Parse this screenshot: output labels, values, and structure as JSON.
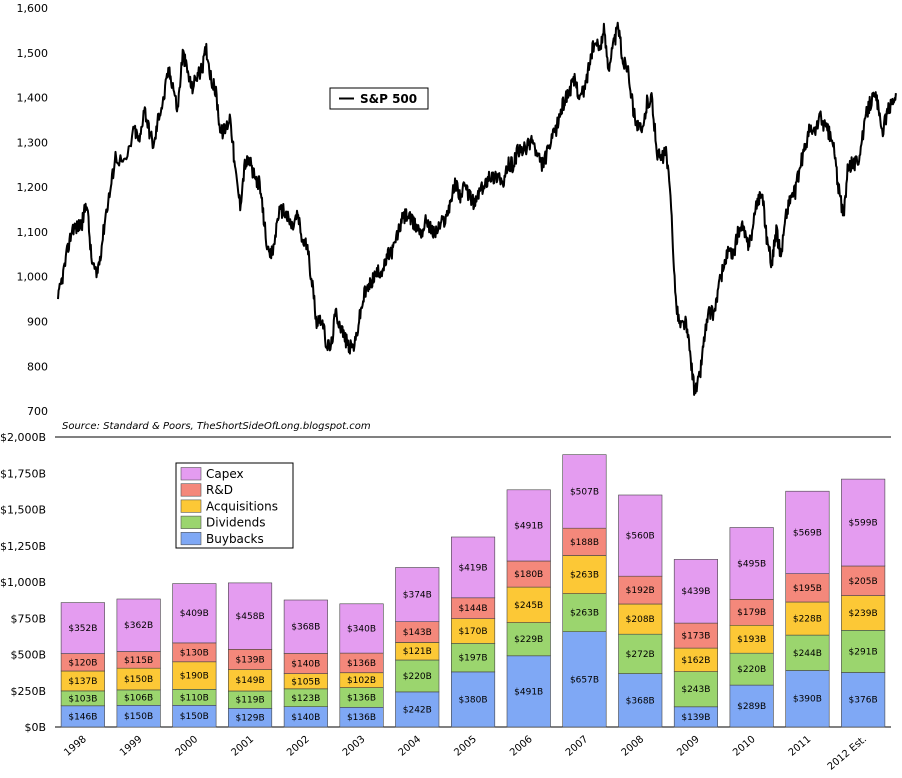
{
  "source_note": "Source: Standard & Poors, TheShortSideOfLong.blogspot.com",
  "chart_data": [
    {
      "type": "line",
      "name": "sp500",
      "series": [
        {
          "name": "S&P 500",
          "color": "#000000"
        }
      ],
      "ylim": [
        680,
        1600
      ],
      "yticks": [
        700,
        800,
        900,
        1000,
        1100,
        1200,
        1300,
        1400,
        1500,
        1600
      ],
      "ytick_labels": [
        "700",
        "800",
        "900",
        "1,000",
        "1,100",
        "1,200",
        "1,300",
        "1,400",
        "1,500",
        "1,600"
      ],
      "xlim": [
        1998.0,
        2012.6
      ],
      "legend_label": "S&P 500",
      "legend": "top-center",
      "points": [
        [
          1998.0,
          950
        ],
        [
          1998.08,
          1000
        ],
        [
          1998.17,
          1060
        ],
        [
          1998.25,
          1110
        ],
        [
          1998.33,
          1110
        ],
        [
          1998.42,
          1120
        ],
        [
          1998.5,
          1170
        ],
        [
          1998.58,
          1040
        ],
        [
          1998.67,
          1000
        ],
        [
          1998.75,
          1060
        ],
        [
          1998.83,
          1140
        ],
        [
          1998.92,
          1200
        ],
        [
          1999.0,
          1270
        ],
        [
          1999.17,
          1250
        ],
        [
          1999.33,
          1330
        ],
        [
          1999.42,
          1300
        ],
        [
          1999.5,
          1380
        ],
        [
          1999.58,
          1330
        ],
        [
          1999.67,
          1290
        ],
        [
          1999.75,
          1360
        ],
        [
          1999.83,
          1390
        ],
        [
          1999.92,
          1460
        ],
        [
          2000.0,
          1430
        ],
        [
          2000.08,
          1370
        ],
        [
          2000.17,
          1500
        ],
        [
          2000.25,
          1460
        ],
        [
          2000.33,
          1420
        ],
        [
          2000.42,
          1450
        ],
        [
          2000.5,
          1460
        ],
        [
          2000.58,
          1510
        ],
        [
          2000.67,
          1440
        ],
        [
          2000.75,
          1410
        ],
        [
          2000.83,
          1320
        ],
        [
          2000.92,
          1330
        ],
        [
          2001.0,
          1360
        ],
        [
          2001.08,
          1240
        ],
        [
          2001.17,
          1160
        ],
        [
          2001.25,
          1250
        ],
        [
          2001.33,
          1260
        ],
        [
          2001.42,
          1220
        ],
        [
          2001.5,
          1210
        ],
        [
          2001.58,
          1130
        ],
        [
          2001.67,
          1040
        ],
        [
          2001.75,
          1060
        ],
        [
          2001.83,
          1140
        ],
        [
          2001.92,
          1150
        ],
        [
          2002.0,
          1130
        ],
        [
          2002.08,
          1110
        ],
        [
          2002.17,
          1140
        ],
        [
          2002.25,
          1080
        ],
        [
          2002.33,
          1070
        ],
        [
          2002.42,
          990
        ],
        [
          2002.5,
          900
        ],
        [
          2002.58,
          910
        ],
        [
          2002.67,
          850
        ],
        [
          2002.75,
          840
        ],
        [
          2002.83,
          920
        ],
        [
          2002.92,
          890
        ],
        [
          2003.0,
          860
        ],
        [
          2003.08,
          840
        ],
        [
          2003.17,
          850
        ],
        [
          2003.25,
          910
        ],
        [
          2003.33,
          960
        ],
        [
          2003.42,
          980
        ],
        [
          2003.5,
          1000
        ],
        [
          2003.58,
          1010
        ],
        [
          2003.67,
          1020
        ],
        [
          2003.75,
          1050
        ],
        [
          2003.83,
          1060
        ],
        [
          2003.92,
          1100
        ],
        [
          2004.0,
          1130
        ],
        [
          2004.08,
          1140
        ],
        [
          2004.17,
          1120
        ],
        [
          2004.25,
          1110
        ],
        [
          2004.33,
          1100
        ],
        [
          2004.42,
          1130
        ],
        [
          2004.5,
          1100
        ],
        [
          2004.58,
          1100
        ],
        [
          2004.67,
          1120
        ],
        [
          2004.75,
          1130
        ],
        [
          2004.83,
          1170
        ],
        [
          2004.92,
          1210
        ],
        [
          2005.0,
          1180
        ],
        [
          2005.08,
          1200
        ],
        [
          2005.17,
          1180
        ],
        [
          2005.25,
          1160
        ],
        [
          2005.33,
          1190
        ],
        [
          2005.42,
          1200
        ],
        [
          2005.5,
          1230
        ],
        [
          2005.58,
          1220
        ],
        [
          2005.67,
          1230
        ],
        [
          2005.75,
          1200
        ],
        [
          2005.83,
          1250
        ],
        [
          2005.92,
          1250
        ],
        [
          2006.0,
          1280
        ],
        [
          2006.08,
          1280
        ],
        [
          2006.17,
          1290
        ],
        [
          2006.25,
          1310
        ],
        [
          2006.33,
          1270
        ],
        [
          2006.42,
          1250
        ],
        [
          2006.5,
          1270
        ],
        [
          2006.58,
          1300
        ],
        [
          2006.67,
          1330
        ],
        [
          2006.75,
          1370
        ],
        [
          2006.83,
          1400
        ],
        [
          2006.92,
          1420
        ],
        [
          2007.0,
          1440
        ],
        [
          2007.08,
          1400
        ],
        [
          2007.17,
          1420
        ],
        [
          2007.25,
          1480
        ],
        [
          2007.33,
          1520
        ],
        [
          2007.42,
          1510
        ],
        [
          2007.5,
          1550
        ],
        [
          2007.58,
          1470
        ],
        [
          2007.67,
          1520
        ],
        [
          2007.75,
          1560
        ],
        [
          2007.83,
          1480
        ],
        [
          2007.92,
          1470
        ],
        [
          2008.0,
          1380
        ],
        [
          2008.08,
          1340
        ],
        [
          2008.17,
          1320
        ],
        [
          2008.25,
          1390
        ],
        [
          2008.33,
          1400
        ],
        [
          2008.42,
          1280
        ],
        [
          2008.5,
          1260
        ],
        [
          2008.58,
          1280
        ],
        [
          2008.67,
          1160
        ],
        [
          2008.75,
          940
        ],
        [
          2008.83,
          890
        ],
        [
          2008.92,
          900
        ],
        [
          2009.0,
          830
        ],
        [
          2009.08,
          740
        ],
        [
          2009.17,
          780
        ],
        [
          2009.25,
          870
        ],
        [
          2009.33,
          920
        ],
        [
          2009.42,
          920
        ],
        [
          2009.5,
          980
        ],
        [
          2009.58,
          1020
        ],
        [
          2009.67,
          1060
        ],
        [
          2009.75,
          1040
        ],
        [
          2009.83,
          1100
        ],
        [
          2009.92,
          1110
        ],
        [
          2010.0,
          1070
        ],
        [
          2010.08,
          1100
        ],
        [
          2010.17,
          1170
        ],
        [
          2010.25,
          1190
        ],
        [
          2010.33,
          1090
        ],
        [
          2010.42,
          1030
        ],
        [
          2010.5,
          1100
        ],
        [
          2010.58,
          1050
        ],
        [
          2010.67,
          1140
        ],
        [
          2010.75,
          1180
        ],
        [
          2010.83,
          1190
        ],
        [
          2010.92,
          1250
        ],
        [
          2011.0,
          1290
        ],
        [
          2011.08,
          1330
        ],
        [
          2011.17,
          1320
        ],
        [
          2011.25,
          1360
        ],
        [
          2011.33,
          1340
        ],
        [
          2011.42,
          1320
        ],
        [
          2011.5,
          1290
        ],
        [
          2011.58,
          1200
        ],
        [
          2011.67,
          1130
        ],
        [
          2011.75,
          1250
        ],
        [
          2011.83,
          1250
        ],
        [
          2011.92,
          1260
        ],
        [
          2012.0,
          1310
        ],
        [
          2012.08,
          1370
        ],
        [
          2012.17,
          1400
        ],
        [
          2012.25,
          1400
        ],
        [
          2012.33,
          1320
        ],
        [
          2012.42,
          1360
        ],
        [
          2012.5,
          1390
        ],
        [
          2012.58,
          1410
        ]
      ]
    },
    {
      "type": "bar",
      "name": "corporate-cash-usage",
      "stacked": true,
      "categories": [
        "1998",
        "1999",
        "2000",
        "2001",
        "2002",
        "2003",
        "2004",
        "2005",
        "2006",
        "2007",
        "2008",
        "2009",
        "2010",
        "2011",
        "2012 Est."
      ],
      "series": [
        {
          "name": "Buybacks",
          "color": "#7fa8f5",
          "values": [
            146,
            150,
            150,
            129,
            140,
            136,
            242,
            380,
            491,
            657,
            368,
            139,
            289,
            390,
            376
          ]
        },
        {
          "name": "Dividends",
          "color": "#9bd56e",
          "values": [
            103,
            106,
            110,
            119,
            123,
            136,
            220,
            197,
            229,
            263,
            272,
            243,
            220,
            244,
            291
          ]
        },
        {
          "name": "Acquisitions",
          "color": "#fcc836",
          "values": [
            137,
            150,
            190,
            149,
            105,
            102,
            121,
            170,
            245,
            263,
            208,
            162,
            193,
            228,
            239
          ]
        },
        {
          "name": "R&D",
          "color": "#f4887b",
          "values": [
            120,
            115,
            130,
            139,
            140,
            136,
            143,
            144,
            180,
            188,
            192,
            173,
            179,
            195,
            205
          ]
        },
        {
          "name": "Capex",
          "color": "#e49cf0",
          "values": [
            352,
            362,
            409,
            458,
            368,
            340,
            374,
            419,
            491,
            507,
            560,
            439,
            495,
            569,
            599
          ]
        }
      ],
      "ylim": [
        0,
        2000
      ],
      "yticks": [
        0,
        250,
        500,
        750,
        1000,
        1250,
        1500,
        1750,
        2000
      ],
      "ytick_labels": [
        "$0B",
        "$250B",
        "$500B",
        "$750B",
        "$1,000B",
        "$1,250B",
        "$1,500B",
        "$1,750B",
        "$2,000B"
      ],
      "value_prefix": "$",
      "value_suffix": "B",
      "legend": "top-left",
      "legend_order": [
        "Capex",
        "R&D",
        "Acquisitions",
        "Dividends",
        "Buybacks"
      ]
    }
  ]
}
